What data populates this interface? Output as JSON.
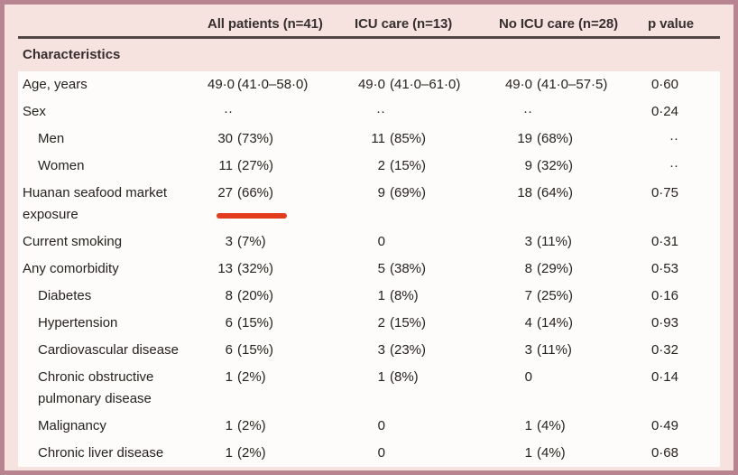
{
  "table": {
    "columns": [
      "",
      "All patients (n=41)",
      "ICU care (n=13)",
      "No ICU care (n=28)",
      "p value"
    ],
    "section_header": "Characteristics",
    "rows": [
      {
        "label": "Age, years",
        "indent": false,
        "cells": [
          "49·0 (41·0–58·0)",
          "49·0 (41·0–61·0)",
          "49·0 (41·0–57·5)",
          "0·60"
        ]
      },
      {
        "label": "Sex",
        "indent": false,
        "cells": [
          "··",
          "··",
          "··",
          "0·24"
        ]
      },
      {
        "label": "Men",
        "indent": true,
        "cells": [
          "30 (73%)",
          "11 (85%)",
          "19 (68%)",
          "··"
        ]
      },
      {
        "label": "Women",
        "indent": true,
        "cells": [
          "11 (27%)",
          "2 (15%)",
          "9 (32%)",
          "··"
        ]
      },
      {
        "label": "Huanan seafood market exposure",
        "indent": false,
        "annotated": true,
        "cells": [
          "27 (66%)",
          "9 (69%)",
          "18 (64%)",
          "0·75"
        ]
      },
      {
        "label": "Current smoking",
        "indent": false,
        "cells": [
          "3 (7%)",
          "0",
          "3 (11%)",
          "0·31"
        ]
      },
      {
        "label": "Any comorbidity",
        "indent": false,
        "cells": [
          "13 (32%)",
          "5 (38%)",
          "8 (29%)",
          "0·53"
        ]
      },
      {
        "label": "Diabetes",
        "indent": true,
        "cells": [
          "8 (20%)",
          "1 (8%)",
          "7 (25%)",
          "0·16"
        ]
      },
      {
        "label": "Hypertension",
        "indent": true,
        "cells": [
          "6 (15%)",
          "2 (15%)",
          "4 (14%)",
          "0·93"
        ]
      },
      {
        "label": "Cardiovascular disease",
        "indent": true,
        "cells": [
          "6 (15%)",
          "3 (23%)",
          "3 (11%)",
          "0·32"
        ]
      },
      {
        "label": "Chronic obstructive pulmonary disease",
        "indent": true,
        "cells": [
          "1 (2%)",
          "1 (8%)",
          "0",
          "0·14"
        ]
      },
      {
        "label": "Malignancy",
        "indent": true,
        "cells": [
          "1 (2%)",
          "0",
          "1 (4%)",
          "0·49"
        ]
      },
      {
        "label": "Chronic liver disease",
        "indent": true,
        "cells": [
          "1 (2%)",
          "0",
          "1 (4%)",
          "0·68"
        ]
      }
    ]
  },
  "annotation": {
    "type": "red-underline",
    "target_cell": "27 (66%)",
    "color": "#e23b1e"
  },
  "colors": {
    "frame_border": "#b98492",
    "page_pink": "#f6e3e0",
    "body_white": "#fdfcfa",
    "header_rule": "#514746",
    "text": "#262220",
    "bold_text": "#362f2d"
  }
}
